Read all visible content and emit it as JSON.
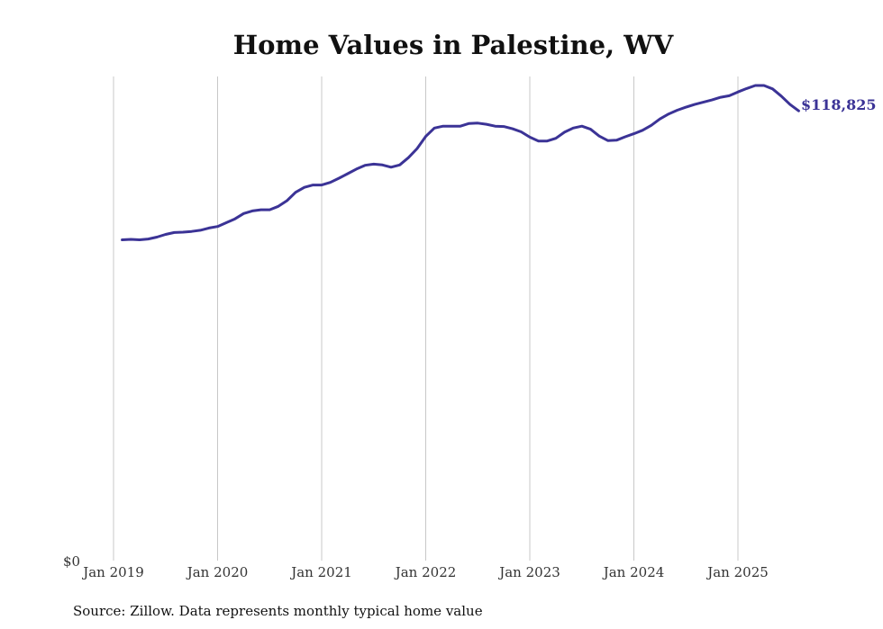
{
  "chart_data": {
    "type": "line",
    "title": "Home Values in Palestine, WV",
    "xlabel": "",
    "ylabel": "",
    "y_tick_label": "$0",
    "ylim": [
      0,
      130000
    ],
    "x_ticks": [
      "Jan 2019",
      "Jan 2020",
      "Jan 2021",
      "Jan 2022",
      "Jan 2023",
      "Jan 2024",
      "Jan 2025"
    ],
    "grid": "vertical",
    "line_color": "#3b3396",
    "end_label": "$118,825",
    "series": [
      {
        "values": [
          84900,
          85000,
          84900,
          85100,
          85600,
          86300,
          86800,
          86900,
          87100,
          87400,
          88000,
          88400,
          89400,
          90400,
          91800,
          92500,
          92800,
          92800,
          93700,
          95200,
          97400,
          98700,
          99300,
          99300,
          100000,
          101100,
          102300,
          103500,
          104500,
          104800,
          104600,
          104000,
          104600,
          106500,
          108900,
          112100,
          114300,
          114800,
          114800,
          114800,
          115500,
          115600,
          115300,
          114800,
          114700,
          114100,
          113300,
          111900,
          110900,
          110900,
          111600,
          113200,
          114300,
          114800,
          114000,
          112200,
          111000,
          111100,
          112000,
          112800,
          113700,
          115000,
          116700,
          118000,
          119000,
          119800,
          120500,
          121100,
          121700,
          122400,
          122800,
          123800,
          124700,
          125500,
          125500,
          124600,
          122700,
          120500,
          118825
        ]
      }
    ]
  },
  "footer": {
    "source": "Source: Zillow. Data represents monthly typical home value"
  }
}
